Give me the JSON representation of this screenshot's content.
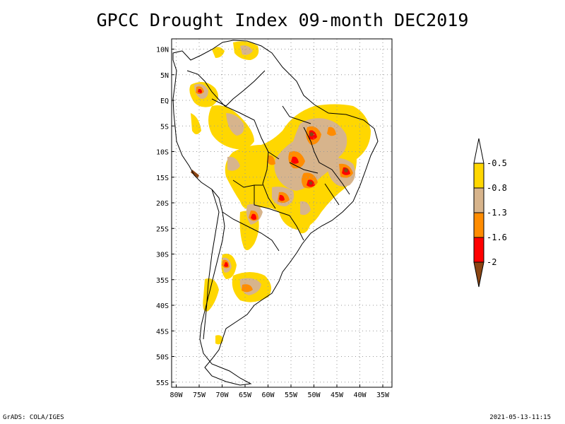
{
  "title": "GPCC Drought Index 09-month DEC2019",
  "footer": {
    "left": "GrADS: COLA/IGES",
    "right": "2021-05-13-11:15"
  },
  "map": {
    "lon_range": [
      -81,
      -33
    ],
    "lat_range": [
      -56,
      12
    ],
    "y_ticks": [
      "10N",
      "5N",
      "EQ",
      "5S",
      "10S",
      "15S",
      "20S",
      "25S",
      "30S",
      "35S",
      "40S",
      "45S",
      "50S",
      "55S"
    ],
    "x_ticks": [
      "80W",
      "75W",
      "70W",
      "65W",
      "60W",
      "55W",
      "50W",
      "45W",
      "40W",
      "35W"
    ]
  },
  "legend": {
    "labels": [
      "-0.5",
      "-0.8",
      "-1.3",
      "-1.6",
      "-2"
    ],
    "colors": {
      "gold": "#ffd700",
      "tan": "#d7b48c",
      "orange": "#ff8c00",
      "red": "#ff0000",
      "brown": "#8b4513"
    }
  }
}
